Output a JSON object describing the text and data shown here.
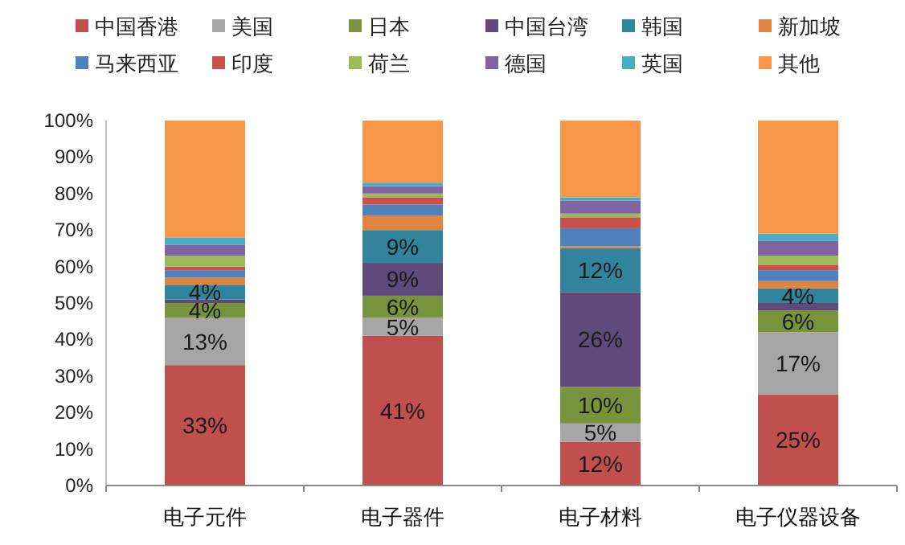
{
  "chart_data": {
    "type": "bar",
    "stacked": true,
    "legend": "top",
    "grid": false,
    "categories": [
      "电子元件",
      "电子器件",
      "电子材料",
      "电子仪器设备"
    ],
    "ylim": [
      0,
      100
    ],
    "yticks": [
      {
        "value": 0,
        "label": "0%"
      },
      {
        "value": 10,
        "label": "10%"
      },
      {
        "value": 20,
        "label": "20%"
      },
      {
        "value": 30,
        "label": "30%"
      },
      {
        "value": 40,
        "label": "40%"
      },
      {
        "value": 50,
        "label": "50%"
      },
      {
        "value": 60,
        "label": "60%"
      },
      {
        "value": 70,
        "label": "70%"
      },
      {
        "value": 80,
        "label": "80%"
      },
      {
        "value": 90,
        "label": "90%"
      },
      {
        "value": 100,
        "label": "100%"
      }
    ],
    "series": [
      {
        "name": "中国香港",
        "color": "#c0504d",
        "values": [
          33,
          41,
          12,
          25
        ],
        "value_labels": [
          "33%",
          "41%",
          "12%",
          "25%"
        ]
      },
      {
        "name": "美国",
        "color": "#a5a5a5",
        "values": [
          13,
          5,
          5,
          17
        ],
        "value_labels": [
          "13%",
          "5%",
          "5%",
          "17%"
        ]
      },
      {
        "name": "日本",
        "color": "#77933c",
        "values": [
          4,
          6,
          10,
          6
        ],
        "value_labels": [
          "4%",
          "6%",
          "10%",
          "6%"
        ]
      },
      {
        "name": "中国台湾",
        "color": "#604a7b",
        "values": [
          1,
          9,
          26,
          2
        ],
        "value_labels": [
          null,
          "9%",
          "26%",
          null
        ]
      },
      {
        "name": "韩国",
        "color": "#31849b",
        "values": [
          4,
          9,
          12,
          4
        ],
        "value_labels": [
          "4%",
          "9%",
          "12%",
          "4%"
        ]
      },
      {
        "name": "新加坡",
        "color": "#e0843f",
        "values": [
          2,
          4,
          0.5,
          2
        ],
        "value_labels": [
          null,
          null,
          null,
          null
        ]
      },
      {
        "name": "马来西亚",
        "color": "#4f81bd",
        "values": [
          2,
          3,
          5,
          3
        ],
        "value_labels": [
          null,
          null,
          null,
          null
        ]
      },
      {
        "name": "印度",
        "color": "#c9504b",
        "values": [
          1,
          2,
          3,
          1.5
        ],
        "value_labels": [
          null,
          null,
          null,
          null
        ]
      },
      {
        "name": "荷兰",
        "color": "#9bbb59",
        "values": [
          3,
          1,
          1,
          2.5
        ],
        "value_labels": [
          null,
          null,
          null,
          null
        ]
      },
      {
        "name": "德国",
        "color": "#8064a2",
        "values": [
          3,
          2,
          3.5,
          4
        ],
        "value_labels": [
          null,
          null,
          null,
          null
        ]
      },
      {
        "name": "英国",
        "color": "#4bacc6",
        "values": [
          2,
          1,
          1,
          2
        ],
        "value_labels": [
          null,
          null,
          null,
          null
        ]
      },
      {
        "name": "其他",
        "color": "#f79646",
        "values": [
          32,
          17,
          21,
          31
        ],
        "value_labels": [
          null,
          null,
          null,
          null
        ]
      }
    ]
  }
}
